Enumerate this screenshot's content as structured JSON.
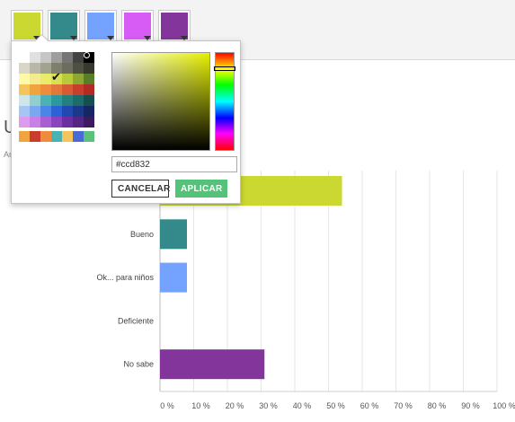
{
  "toolbar": {
    "swatches": [
      {
        "color": "#ccd832"
      },
      {
        "color": "#348a8a"
      },
      {
        "color": "#74a3ff"
      },
      {
        "color": "#d75cf5"
      },
      {
        "color": "#83359c"
      }
    ]
  },
  "page": {
    "heading": "U",
    "sub": "Ar"
  },
  "color_picker": {
    "palette": [
      [
        "#ffffff",
        "#e0e0e0",
        "#c6c6c6",
        "#9e9e9e",
        "#757575",
        "#424242",
        "#000000"
      ],
      [
        "#d8d6c9",
        "#b8b7a8",
        "#a2a38e",
        "#7e7f6c",
        "#6c6d5e",
        "#4f5044",
        "#373830"
      ],
      [
        "#fffaa6",
        "#f3ec8e",
        "#e7ec6b",
        "#d6e050",
        "#b8c93c",
        "#8ea733",
        "#5a7d2b"
      ],
      [
        "#f5c55b",
        "#f0a33e",
        "#ee8b3c",
        "#e3763a",
        "#d75a33",
        "#c93d2c",
        "#b32a24"
      ],
      [
        "#cde6e8",
        "#8fcfd0",
        "#4bb2b4",
        "#2b9a9c",
        "#23807f",
        "#1e6b6b",
        "#174f50"
      ],
      [
        "#a5c6f5",
        "#7aa8f0",
        "#4a85e8",
        "#2d62d6",
        "#2149b0",
        "#1b3889",
        "#142763"
      ],
      [
        "#dd9bf0",
        "#c87fe6",
        "#a75fd1",
        "#8a44bd",
        "#6b2fa0",
        "#532585",
        "#3b1a60"
      ]
    ],
    "selected": {
      "row": 2,
      "col": 3
    },
    "recent": [
      "#f0a33e",
      "#c93d2c",
      "#ee8b3c",
      "#4bb2b4",
      "#f5c55b",
      "#4a6bd6",
      "#5bc07a"
    ],
    "hex_value": "#ccd832",
    "cancel_label": "CANCELAR",
    "apply_label": "APLICAR"
  },
  "chart_data": {
    "type": "bar",
    "orientation": "horizontal",
    "categories": [
      "",
      "Bueno",
      "Ok... para niños",
      "Deficiente",
      "No sabe"
    ],
    "values": [
      54,
      8,
      8,
      0,
      31
    ],
    "colors": [
      "#ccd832",
      "#348a8a",
      "#74a3ff",
      "#d75cf5",
      "#83359c"
    ],
    "x_ticks": [
      "0 %",
      "10 %",
      "20 %",
      "30 %",
      "40 %",
      "50 %",
      "60 %",
      "70 %",
      "80 %",
      "90 %",
      "100 %"
    ],
    "xlim": [
      0,
      100
    ],
    "grid": true
  }
}
